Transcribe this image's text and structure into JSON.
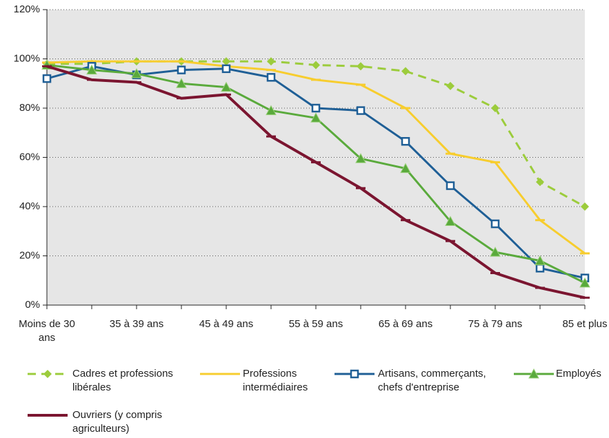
{
  "chart_data": {
    "type": "line",
    "categories": [
      "Moins de 30 ans",
      null,
      "35 à 39 ans",
      null,
      "45 à 49 ans",
      null,
      "55 à 59 ans",
      null,
      "65 à 69 ans",
      null,
      "75 à 79 ans",
      null,
      "85 et plus"
    ],
    "series": [
      {
        "name": "Cadres et professions libérales",
        "color": "#9ccc3c",
        "marker": "diamond",
        "dashed": true,
        "values": [
          98,
          98,
          99,
          99,
          99,
          99,
          97.5,
          97,
          95,
          89,
          80,
          50,
          40
        ]
      },
      {
        "name": "Professions intermédiaires",
        "color": "#f7cd2e",
        "marker": "dash",
        "dashed": false,
        "values": [
          98.5,
          99,
          99,
          99,
          97,
          95.5,
          91.5,
          89.5,
          80,
          61.5,
          58,
          34.5,
          21
        ]
      },
      {
        "name": "Artisans, commerçants, chefs d'entreprise",
        "color": "#1f5f96",
        "marker": "square",
        "dashed": false,
        "values": [
          92,
          97,
          93.5,
          95.5,
          96,
          92.5,
          80,
          79,
          66.5,
          48.5,
          33,
          15,
          11
        ]
      },
      {
        "name": "Employés",
        "color": "#5aaa3c",
        "marker": "triangle",
        "dashed": false,
        "values": [
          97.5,
          95.5,
          94,
          90,
          88.5,
          79,
          76,
          59.5,
          55.5,
          34,
          21.5,
          18,
          9
        ]
      },
      {
        "name": "Ouvriers (y compris agriculteurs)",
        "color": "#7b1530",
        "marker": "dash",
        "dashed": false,
        "values": [
          97,
          91.5,
          90.5,
          84,
          85.5,
          68.5,
          58,
          47.5,
          34.5,
          26,
          13,
          7,
          3
        ]
      }
    ],
    "ylim": [
      0,
      120
    ],
    "yticks": [
      {
        "value": 0,
        "label": "0%"
      },
      {
        "value": 20,
        "label": "20%"
      },
      {
        "value": 40,
        "label": "40%"
      },
      {
        "value": 60,
        "label": "60%"
      },
      {
        "value": 80,
        "label": "80%"
      },
      {
        "value": 100,
        "label": "100%"
      },
      {
        "value": 120,
        "label": "120%"
      }
    ],
    "grid": true,
    "background": "#e6e6e6"
  }
}
